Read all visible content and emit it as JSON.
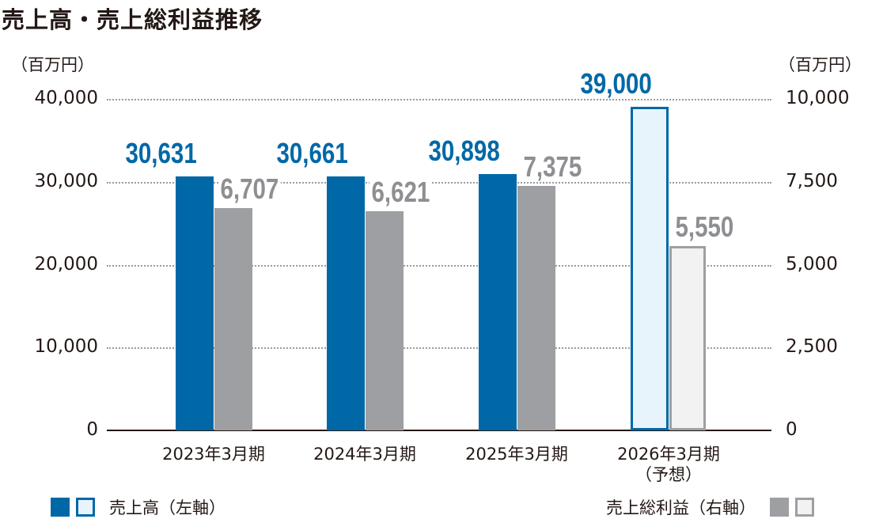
{
  "title": "売上高・売上総利益推移",
  "left_unit": "（百万円）",
  "right_unit": "（百万円）",
  "colors": {
    "sales": "#0068a7",
    "sales_forecast_fill": "#e8f4fc",
    "gross": "#9d9fa2",
    "gross_forecast_fill": "#f2f2f2",
    "gross_forecast_border": "#9d9fa2",
    "grid": "#9a9a9a",
    "text": "#231815"
  },
  "left_ticks": [
    "40,000",
    "30,000",
    "20,000",
    "10,000",
    "0"
  ],
  "right_ticks": [
    "10,000",
    "7,500",
    "5,000",
    "2,500",
    "0"
  ],
  "categories": [
    {
      "line1": "2023年3月期",
      "line2": ""
    },
    {
      "line1": "2024年3月期",
      "line2": ""
    },
    {
      "line1": "2025年3月期",
      "line2": ""
    },
    {
      "line1": "2026年3月期",
      "line2": "（予想）"
    }
  ],
  "labels": {
    "sales": [
      "30,631",
      "30,661",
      "30,898",
      "39,000"
    ],
    "gross": [
      "6,707",
      "6,621",
      "7,375",
      "5,550"
    ]
  },
  "legend": {
    "sales": "売上高（左軸）",
    "gross": "売上総利益（右軸）"
  },
  "chart_data": {
    "type": "bar",
    "title": "売上高・売上総利益推移",
    "categories": [
      "2023年3月期",
      "2024年3月期",
      "2025年3月期",
      "2026年3月期（予想）"
    ],
    "series": [
      {
        "name": "売上高（左軸）",
        "axis": "left",
        "values": [
          30631,
          30661,
          30898,
          39000
        ],
        "forecast_index": [
          3
        ]
      },
      {
        "name": "売上総利益（右軸）",
        "axis": "right",
        "values": [
          6707,
          6621,
          7375,
          5550
        ],
        "forecast_index": [
          3
        ]
      }
    ],
    "xlabel": "",
    "ylabel_left": "（百万円）",
    "ylabel_right": "（百万円）",
    "ylim_left": [
      0,
      40000
    ],
    "ylim_right": [
      0,
      10000
    ],
    "yticks_left": [
      0,
      10000,
      20000,
      30000,
      40000
    ],
    "yticks_right": [
      0,
      2500,
      5000,
      7500,
      10000
    ],
    "grid": "dotted horizontal",
    "legend_position": "bottom"
  }
}
